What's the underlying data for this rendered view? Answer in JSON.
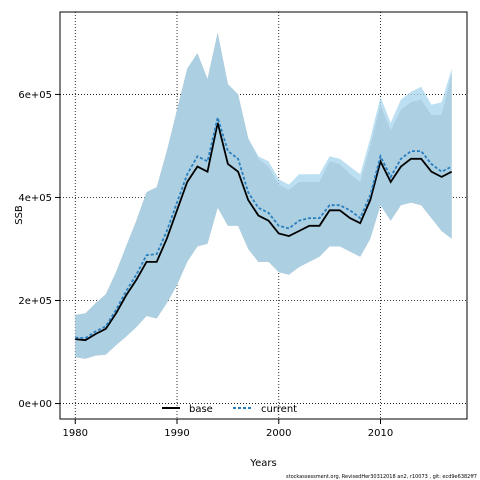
{
  "chart_data": {
    "type": "area",
    "xlabel": "Years",
    "ylabel": "SSB",
    "xlim": [
      1978.5,
      2018.5
    ],
    "ylim": [
      -30000,
      760000
    ],
    "xticks": [
      1980,
      1990,
      2000,
      2010
    ],
    "yticks": [
      0,
      200000,
      400000,
      600000
    ],
    "ytick_labels": [
      "0e+00",
      "2e+05",
      "4e+05",
      "6e+05"
    ],
    "grid": "dotted",
    "legend_placement": "bottom-center",
    "footnote": "stockassessment.org, RevisedHer30312018  an2,  r10073 ,  git:  ecd9e6382ff7",
    "colors": {
      "base_band": "#bebebe",
      "current_band": "#a6d4ec",
      "current_line": "#2a7fbf",
      "base_line": "#000000"
    },
    "x": [
      1980,
      1981,
      1982,
      1983,
      1984,
      1985,
      1986,
      1987,
      1988,
      1989,
      1990,
      1991,
      1992,
      1993,
      1994,
      1995,
      1996,
      1997,
      1998,
      1999,
      2000,
      2001,
      2002,
      2003,
      2004,
      2005,
      2006,
      2007,
      2008,
      2009,
      2010,
      2011,
      2012,
      2013,
      2014,
      2015,
      2016,
      2017
    ],
    "series": [
      {
        "name": "base",
        "values": [
          125000,
          123000,
          135000,
          145000,
          175000,
          210000,
          240000,
          275000,
          275000,
          320000,
          375000,
          430000,
          460000,
          450000,
          545000,
          465000,
          450000,
          395000,
          365000,
          355000,
          330000,
          325000,
          335000,
          345000,
          345000,
          375000,
          375000,
          360000,
          350000,
          395000,
          470000,
          430000,
          460000,
          475000,
          475000,
          450000,
          440000,
          450000
        ],
        "lower": [
          90000,
          87000,
          93000,
          95000,
          113000,
          130000,
          148000,
          170000,
          165000,
          195000,
          230000,
          275000,
          305000,
          310000,
          380000,
          345000,
          345000,
          300000,
          275000,
          275000,
          255000,
          250000,
          265000,
          275000,
          285000,
          305000,
          305000,
          295000,
          285000,
          320000,
          385000,
          355000,
          385000,
          390000,
          385000,
          360000,
          335000,
          320000
        ],
        "upper": [
          172000,
          175000,
          195000,
          212000,
          255000,
          305000,
          355000,
          410000,
          420000,
          490000,
          570000,
          650000,
          680000,
          630000,
          720000,
          620000,
          600000,
          515000,
          475000,
          460000,
          425000,
          415000,
          430000,
          430000,
          430000,
          470000,
          465000,
          445000,
          430000,
          500000,
          580000,
          530000,
          570000,
          585000,
          590000,
          560000,
          560000,
          640000
        ]
      },
      {
        "name": "current",
        "values": [
          128000,
          127000,
          140000,
          150000,
          182000,
          218000,
          250000,
          288000,
          290000,
          335000,
          390000,
          445000,
          480000,
          470000,
          555000,
          490000,
          475000,
          410000,
          380000,
          370000,
          345000,
          340000,
          355000,
          360000,
          360000,
          385000,
          385000,
          375000,
          360000,
          405000,
          480000,
          440000,
          475000,
          490000,
          490000,
          465000,
          450000,
          460000
        ],
        "lower": [
          90000,
          87000,
          93000,
          95000,
          113000,
          130000,
          148000,
          170000,
          165000,
          195000,
          230000,
          275000,
          305000,
          310000,
          380000,
          345000,
          345000,
          300000,
          275000,
          275000,
          255000,
          250000,
          265000,
          275000,
          285000,
          305000,
          305000,
          295000,
          285000,
          320000,
          385000,
          355000,
          385000,
          390000,
          385000,
          360000,
          335000,
          320000
        ],
        "upper": [
          172000,
          175000,
          195000,
          212000,
          255000,
          305000,
          355000,
          410000,
          420000,
          490000,
          570000,
          650000,
          680000,
          630000,
          720000,
          620000,
          600000,
          515000,
          480000,
          470000,
          435000,
          425000,
          445000,
          445000,
          445000,
          480000,
          475000,
          460000,
          445000,
          515000,
          595000,
          545000,
          590000,
          605000,
          615000,
          580000,
          585000,
          650000
        ]
      }
    ]
  }
}
